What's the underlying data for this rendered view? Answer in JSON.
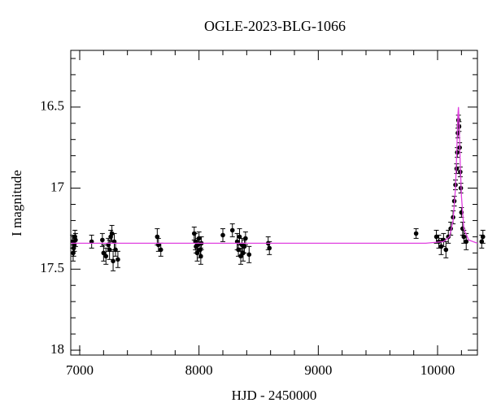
{
  "chart_data": {
    "type": "scatter",
    "title": "OGLE-2023-BLG-1066",
    "x_label": "HJD - 2450000",
    "y_label": "I magnitude",
    "xlim": [
      6925,
      10334
    ],
    "ylim": [
      18.03,
      16.15
    ],
    "y_inverted": true,
    "xticks": [
      7000,
      8000,
      9000,
      10000
    ],
    "xminorticks": [
      7200,
      7400,
      7600,
      7800,
      8200,
      8400,
      8600,
      8800,
      9200,
      9400,
      9600,
      9800,
      10200
    ],
    "yticks": [
      16.5,
      17,
      17.5,
      18
    ],
    "yminorticks": [
      16.2,
      16.3,
      16.4,
      16.6,
      16.7,
      16.8,
      16.9,
      17.1,
      17.2,
      17.3,
      17.4,
      17.6,
      17.7,
      17.8,
      17.9,
      18.0
    ],
    "points": {
      "color": "#000000",
      "x": [
        6940,
        6950,
        6960,
        6945,
        6955,
        6965,
        7100,
        7190,
        7200,
        7220,
        7240,
        7250,
        7260,
        7270,
        7280,
        7290,
        7300,
        7320,
        7650,
        7660,
        7680,
        7960,
        7970,
        7975,
        7985,
        7990,
        8000,
        8010,
        8015,
        8020,
        8200,
        8280,
        8320,
        8330,
        8340,
        8350,
        8360,
        8370,
        8380,
        8390,
        8420,
        8580,
        8590,
        9820,
        9990,
        10010,
        10030,
        10050,
        10070,
        10090,
        10110,
        10130,
        10140,
        10150,
        10160,
        10165,
        10170,
        10175,
        10180,
        10185,
        10190,
        10195,
        10200,
        10210,
        10220,
        10240,
        10370,
        10380
      ],
      "y": [
        17.33,
        17.37,
        17.3,
        17.4,
        17.35,
        17.32,
        17.33,
        17.32,
        17.4,
        17.42,
        17.35,
        17.38,
        17.3,
        17.28,
        17.45,
        17.33,
        17.38,
        17.44,
        17.3,
        17.35,
        17.38,
        17.28,
        17.33,
        17.36,
        17.4,
        17.35,
        17.31,
        17.38,
        17.42,
        17.34,
        17.29,
        17.26,
        17.33,
        17.38,
        17.3,
        17.42,
        17.35,
        17.4,
        17.36,
        17.31,
        17.41,
        17.34,
        17.37,
        17.28,
        17.3,
        17.33,
        17.36,
        17.32,
        17.38,
        17.3,
        17.25,
        17.18,
        17.08,
        16.98,
        16.88,
        16.78,
        16.66,
        16.58,
        16.62,
        16.75,
        16.9,
        17.0,
        17.15,
        17.25,
        17.3,
        17.33,
        17.33,
        17.3
      ],
      "errors": [
        0.04,
        0.05,
        0.04,
        0.05,
        0.04,
        0.04,
        0.04,
        0.04,
        0.05,
        0.05,
        0.04,
        0.06,
        0.04,
        0.05,
        0.06,
        0.05,
        0.04,
        0.05,
        0.05,
        0.04,
        0.04,
        0.04,
        0.05,
        0.04,
        0.05,
        0.04,
        0.04,
        0.05,
        0.05,
        0.04,
        0.04,
        0.04,
        0.05,
        0.04,
        0.05,
        0.05,
        0.04,
        0.05,
        0.04,
        0.04,
        0.05,
        0.04,
        0.04,
        0.03,
        0.04,
        0.04,
        0.05,
        0.04,
        0.05,
        0.04,
        0.04,
        0.04,
        0.03,
        0.03,
        0.03,
        0.03,
        0.03,
        0.03,
        0.03,
        0.03,
        0.03,
        0.03,
        0.03,
        0.04,
        0.04,
        0.05,
        0.04,
        0.04
      ]
    },
    "model": {
      "color": "#e040e0",
      "x": [
        6925,
        9900,
        10050,
        10100,
        10130,
        10150,
        10160,
        10170,
        10175,
        10180,
        10190,
        10200,
        10220,
        10260,
        10334
      ],
      "y": [
        17.34,
        17.34,
        17.33,
        17.3,
        17.2,
        17.0,
        16.8,
        16.55,
        16.5,
        16.58,
        16.85,
        17.05,
        17.25,
        17.32,
        17.34
      ]
    }
  }
}
